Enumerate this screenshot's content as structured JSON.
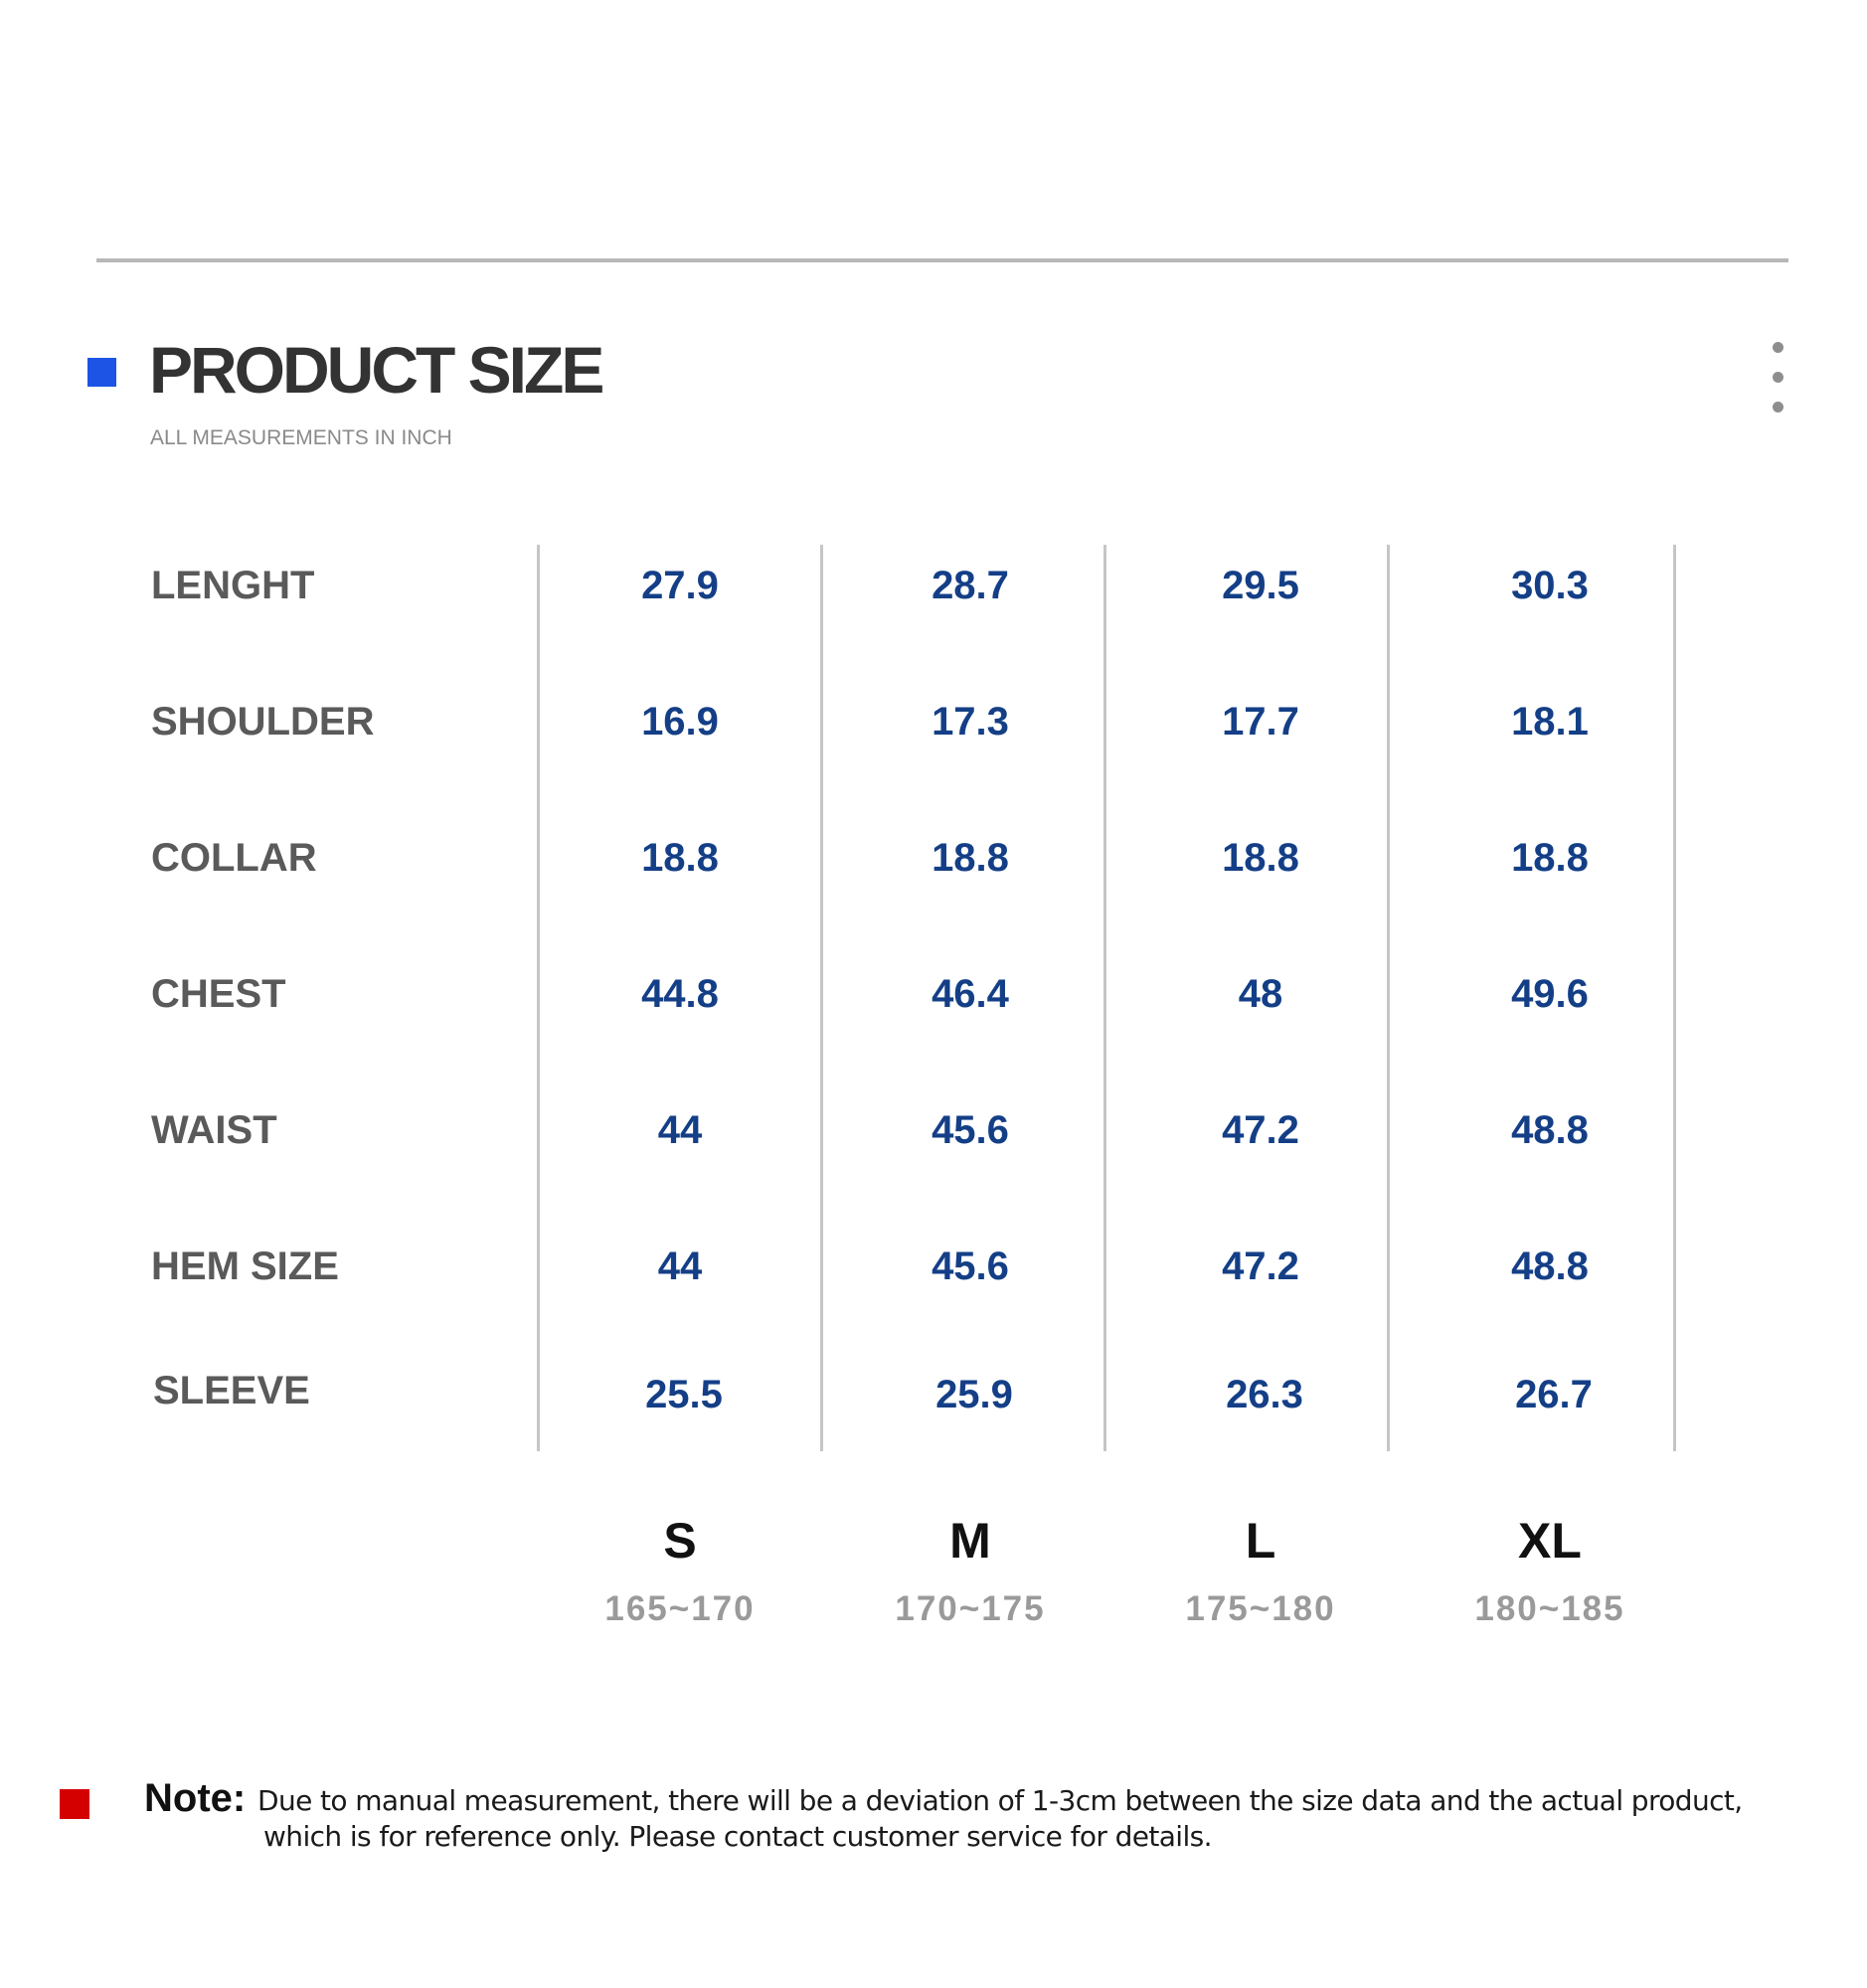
{
  "header": {
    "title": "PRODUCT SIZE",
    "subtitle": "ALL MEASUREMENTS IN INCH",
    "accent_color": "#1d54e6",
    "more_icon": "more-vertical-icon"
  },
  "size_table": {
    "sizes": [
      {
        "label": "S",
        "height_range": "165~170"
      },
      {
        "label": "M",
        "height_range": "170~175"
      },
      {
        "label": "L",
        "height_range": "175~180"
      },
      {
        "label": "XL",
        "height_range": "180~185"
      }
    ],
    "rows": [
      {
        "label": "LENGHT",
        "values": [
          "27.9",
          "28.7",
          "29.5",
          "30.3"
        ]
      },
      {
        "label": "SHOULDER",
        "values": [
          "16.9",
          "17.3",
          "17.7",
          "18.1"
        ]
      },
      {
        "label": "COLLAR",
        "values": [
          "18.8",
          "18.8",
          "18.8",
          "18.8"
        ]
      },
      {
        "label": "CHEST",
        "values": [
          "44.8",
          "46.4",
          "48",
          "49.6"
        ]
      },
      {
        "label": "WAIST",
        "values": [
          "44",
          "45.6",
          "47.2",
          "48.8"
        ]
      },
      {
        "label": "HEM SIZE",
        "values": [
          "44",
          "45.6",
          "47.2",
          "48.8"
        ]
      },
      {
        "label": "SLEEVE",
        "values": [
          "25.5",
          "25.9",
          "26.3",
          "26.7"
        ]
      }
    ],
    "value_color": "#143f87",
    "label_color": "#5a5a5a"
  },
  "note": {
    "heading": "Note:",
    "line1": "Due to manual measurement, there will be a deviation of 1-3cm between the size data and the actual product,",
    "line2": "which is for reference only. Please contact customer service for details.",
    "marker_color": "#d40000"
  }
}
